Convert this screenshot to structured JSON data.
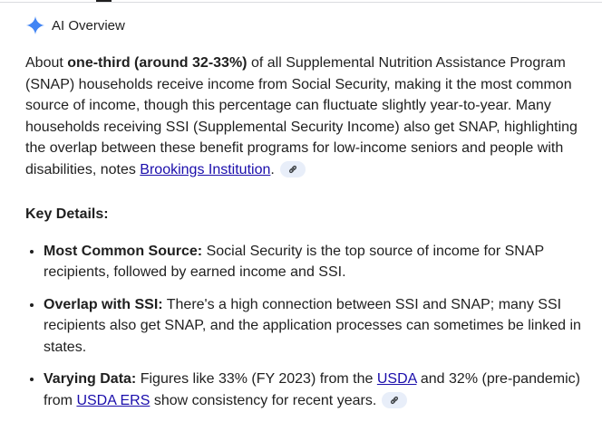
{
  "header": {
    "title": "AI Overview",
    "icon": "sparkle-icon",
    "accent": "#4285f4"
  },
  "intro": {
    "p1": "About ",
    "bold": "one-third (around 32-33%)",
    "p2": " of all Supplemental Nutrition Assistance Program (SNAP) households receive income from Social Security, making it the most common source of income, though this percentage can fluctuate slightly year-to-year. Many households receiving SSI (Supplemental Security Income) also get SNAP, highlighting the overlap between these benefit programs for low-income seniors and people with disabilities, notes ",
    "link": "Brookings Institution",
    "p3": "."
  },
  "key_details": "Key Details:",
  "bullets": [
    {
      "label": "Most Common Source:",
      "text": " Social Security is the top source of income for SNAP recipients, followed by earned income and SSI."
    },
    {
      "label": "Overlap with SSI:",
      "text": " There's a high connection between SSI and SNAP; many SSI recipients also get SNAP, and the application processes can sometimes be linked in states."
    },
    {
      "label": "Varying Data:",
      "t1": " Figures like 33% (FY 2023) from the ",
      "link1": "USDA",
      "t2": " and 32% (pre-pandemic) from ",
      "link2": "USDA ERS",
      "t3": " show consistency for recent years."
    }
  ]
}
